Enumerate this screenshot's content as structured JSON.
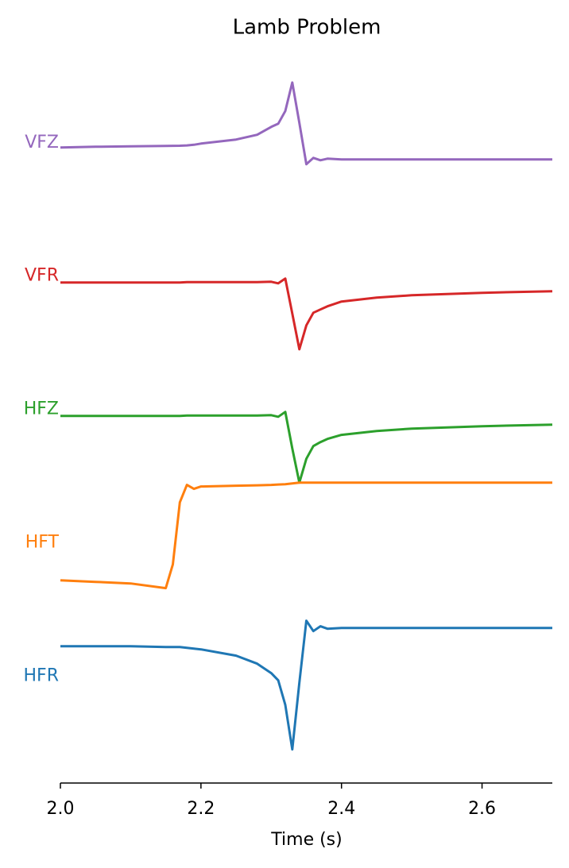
{
  "chart_data": {
    "type": "line",
    "title": "Lamb Problem",
    "x_label": "Time (s)",
    "x": [
      2.0,
      2.05,
      2.1,
      2.15,
      2.16,
      2.17,
      2.18,
      2.19,
      2.2,
      2.25,
      2.28,
      2.3,
      2.31,
      2.32,
      2.33,
      2.34,
      2.35,
      2.36,
      2.37,
      2.38,
      2.4,
      2.45,
      2.5,
      2.6,
      2.7
    ],
    "series": [
      {
        "name": "VFZ",
        "color": "#9467bd",
        "values": [
          3.964,
          3.97,
          3.973,
          3.976,
          3.977,
          3.978,
          3.98,
          3.985,
          3.994,
          4.024,
          4.06,
          4.119,
          4.143,
          4.238,
          4.452,
          4.149,
          3.839,
          3.887,
          3.869,
          3.881,
          3.875,
          3.875,
          3.875,
          3.875,
          3.875
        ]
      },
      {
        "name": "VFR",
        "color": "#d62728",
        "values": [
          2.952,
          2.952,
          2.952,
          2.952,
          2.952,
          2.952,
          2.955,
          2.955,
          2.955,
          2.955,
          2.955,
          2.958,
          2.946,
          2.982,
          2.72,
          2.452,
          2.631,
          2.726,
          2.75,
          2.774,
          2.81,
          2.839,
          2.857,
          2.875,
          2.887
        ]
      },
      {
        "name": "HFZ",
        "color": "#2ca02c",
        "values": [
          1.952,
          1.952,
          1.952,
          1.952,
          1.952,
          1.952,
          1.955,
          1.955,
          1.955,
          1.955,
          1.955,
          1.958,
          1.946,
          1.982,
          1.708,
          1.452,
          1.631,
          1.726,
          1.756,
          1.78,
          1.81,
          1.839,
          1.857,
          1.875,
          1.887
        ]
      },
      {
        "name": "HFT",
        "color": "#ff7f0e",
        "values": [
          0.72,
          0.708,
          0.696,
          0.661,
          0.839,
          1.304,
          1.435,
          1.405,
          1.423,
          1.429,
          1.432,
          1.435,
          1.438,
          1.44,
          1.446,
          1.452,
          1.452,
          1.452,
          1.452,
          1.452,
          1.452,
          1.452,
          1.452,
          1.452,
          1.452
        ]
      },
      {
        "name": "HFR",
        "color": "#1f77b4",
        "values": [
          0.226,
          0.226,
          0.226,
          0.22,
          0.22,
          0.22,
          0.214,
          0.208,
          0.202,
          0.155,
          0.095,
          0.024,
          -0.03,
          -0.214,
          -0.548,
          -0.048,
          0.417,
          0.339,
          0.375,
          0.357,
          0.363,
          0.363,
          0.363,
          0.363,
          0.363
        ]
      }
    ],
    "xlim": [
      2.0,
      2.7
    ],
    "xticks": [
      {
        "value": 2.0,
        "label": "2.0"
      },
      {
        "value": 2.2,
        "label": "2.2"
      },
      {
        "value": 2.4,
        "label": "2.4"
      },
      {
        "value": 2.6,
        "label": "2.6"
      }
    ],
    "ylim": [
      -0.8,
      4.6
    ],
    "yticks": [
      {
        "value": 0,
        "label": "HFR"
      },
      {
        "value": 1,
        "label": "HFT"
      },
      {
        "value": 2,
        "label": "HFZ"
      },
      {
        "value": 3,
        "label": "VFR"
      },
      {
        "value": 4,
        "label": "VFZ"
      }
    ]
  }
}
